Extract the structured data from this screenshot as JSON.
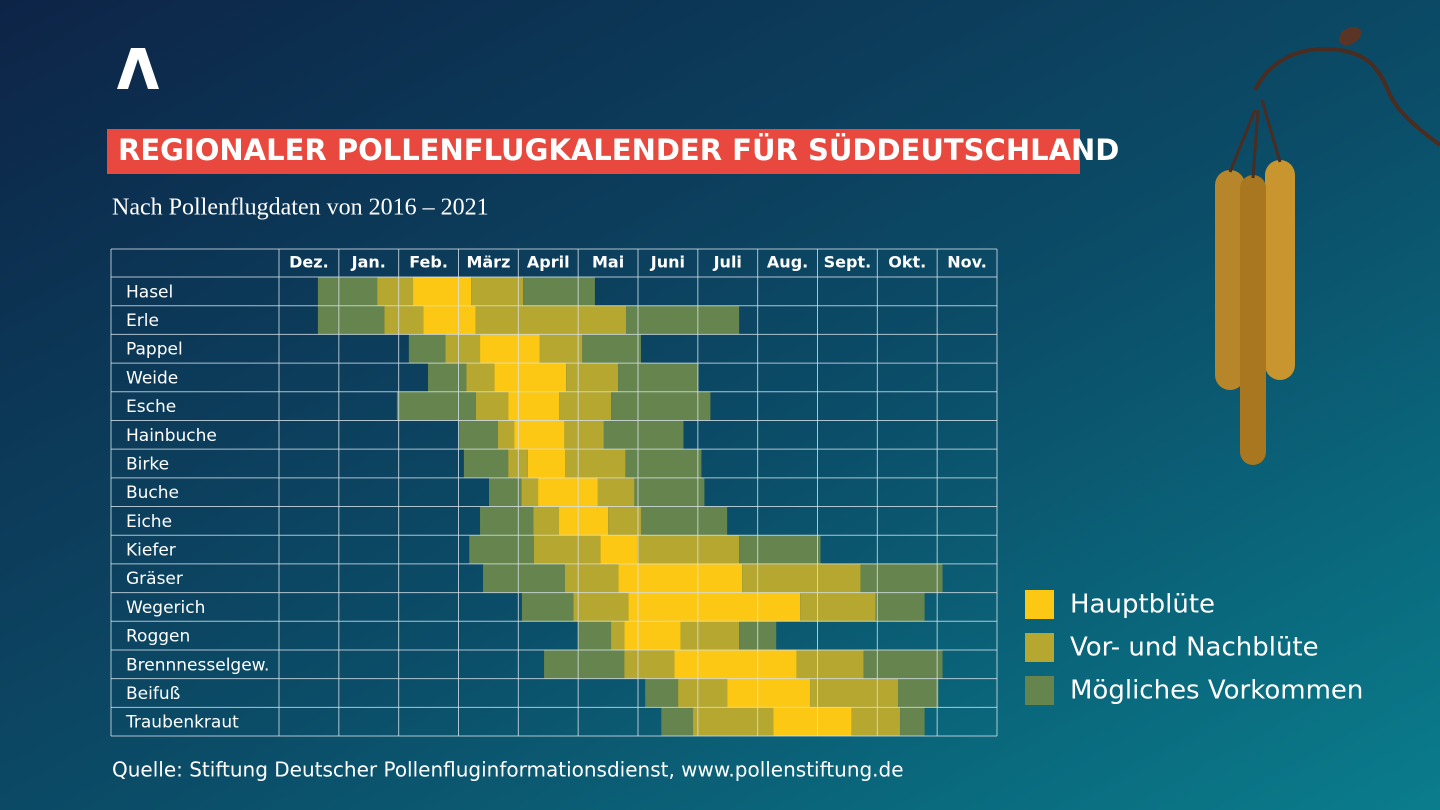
{
  "chart_data": {
    "type": "timeline",
    "title": "REGIONALER POLLENFLUGKALENDER FÜR SÜDDEUTSCHLAND",
    "subtitle": "Nach Pollenflugdaten von 2016 – 2021",
    "source": "Quelle: Stiftung Deutscher Pollenfluginformationsdienst, www.pollenstiftung.de",
    "categories": [
      "Dez.",
      "Jan.",
      "Feb.",
      "März",
      "April",
      "Mai",
      "Juni",
      "Juli",
      "Aug.",
      "Sept.",
      "Okt.",
      "Nov."
    ],
    "xlim": [
      0,
      12
    ],
    "series": [
      {
        "name": "Hauptblüte",
        "color": "#fcc814"
      },
      {
        "name": "Vor- und Nachblüte",
        "color": "#b5a730"
      },
      {
        "name": "Mögliches Vorkommen",
        "color": "#66844e"
      }
    ],
    "rows": [
      {
        "name": "Hasel",
        "spans": [
          [
            0.65,
            1.64,
            2
          ],
          [
            1.64,
            2.24,
            1
          ],
          [
            2.24,
            3.21,
            0
          ],
          [
            3.21,
            4.08,
            1
          ],
          [
            4.08,
            5.28,
            2
          ]
        ]
      },
      {
        "name": "Erle",
        "spans": [
          [
            0.65,
            1.76,
            2
          ],
          [
            1.76,
            2.41,
            1
          ],
          [
            2.41,
            3.29,
            0
          ],
          [
            3.29,
            5.8,
            1
          ],
          [
            5.8,
            7.69,
            2
          ]
        ]
      },
      {
        "name": "Pappel",
        "spans": [
          [
            2.17,
            2.78,
            2
          ],
          [
            2.78,
            3.36,
            1
          ],
          [
            3.36,
            4.36,
            0
          ],
          [
            4.36,
            5.07,
            1
          ],
          [
            5.07,
            6.05,
            2
          ]
        ]
      },
      {
        "name": "Weide",
        "spans": [
          [
            2.49,
            3.13,
            2
          ],
          [
            3.13,
            3.6,
            1
          ],
          [
            3.6,
            4.8,
            0
          ],
          [
            4.8,
            5.67,
            1
          ],
          [
            5.67,
            7.01,
            2
          ]
        ]
      },
      {
        "name": "Esche",
        "spans": [
          [
            1.97,
            3.29,
            2
          ],
          [
            3.29,
            3.83,
            1
          ],
          [
            3.83,
            4.68,
            0
          ],
          [
            4.68,
            5.55,
            1
          ],
          [
            5.55,
            7.21,
            2
          ]
        ]
      },
      {
        "name": "Hainbuche",
        "spans": [
          [
            3.01,
            3.66,
            2
          ],
          [
            3.66,
            3.93,
            1
          ],
          [
            3.93,
            4.77,
            0
          ],
          [
            4.77,
            5.43,
            1
          ],
          [
            5.43,
            6.76,
            2
          ]
        ]
      },
      {
        "name": "Birke",
        "spans": [
          [
            3.09,
            3.83,
            2
          ],
          [
            3.83,
            4.16,
            1
          ],
          [
            4.16,
            4.78,
            0
          ],
          [
            4.78,
            5.79,
            1
          ],
          [
            5.79,
            7.06,
            2
          ]
        ]
      },
      {
        "name": "Buche",
        "spans": [
          [
            3.51,
            4.05,
            2
          ],
          [
            4.05,
            4.33,
            1
          ],
          [
            4.33,
            5.33,
            0
          ],
          [
            5.33,
            5.94,
            1
          ],
          [
            5.94,
            7.11,
            2
          ]
        ]
      },
      {
        "name": "Eiche",
        "spans": [
          [
            3.36,
            4.25,
            2
          ],
          [
            4.25,
            4.68,
            1
          ],
          [
            4.68,
            5.5,
            0
          ],
          [
            5.5,
            6.05,
            1
          ],
          [
            6.05,
            7.49,
            2
          ]
        ]
      },
      {
        "name": "Kiefer",
        "spans": [
          [
            3.18,
            4.26,
            2
          ],
          [
            4.26,
            5.37,
            1
          ],
          [
            5.37,
            5.99,
            0
          ],
          [
            5.99,
            7.69,
            1
          ],
          [
            7.69,
            9.05,
            2
          ]
        ]
      },
      {
        "name": "Gräser",
        "spans": [
          [
            3.41,
            4.78,
            2
          ],
          [
            4.78,
            5.67,
            1
          ],
          [
            5.67,
            7.74,
            0
          ],
          [
            7.74,
            9.72,
            1
          ],
          [
            9.72,
            11.09,
            2
          ]
        ]
      },
      {
        "name": "Wegerich",
        "spans": [
          [
            4.06,
            4.92,
            2
          ],
          [
            4.92,
            5.84,
            1
          ],
          [
            5.84,
            8.71,
            0
          ],
          [
            8.71,
            9.97,
            1
          ],
          [
            9.97,
            10.79,
            2
          ]
        ]
      },
      {
        "name": "Roggen",
        "spans": [
          [
            5.0,
            5.55,
            2
          ],
          [
            5.55,
            5.77,
            1
          ],
          [
            5.77,
            6.71,
            0
          ],
          [
            6.71,
            7.69,
            1
          ],
          [
            7.69,
            8.31,
            2
          ]
        ]
      },
      {
        "name": "Brennnesselgew.",
        "spans": [
          [
            4.43,
            5.77,
            2
          ],
          [
            5.77,
            6.61,
            1
          ],
          [
            6.61,
            8.65,
            0
          ],
          [
            8.65,
            9.77,
            1
          ],
          [
            9.77,
            11.09,
            2
          ]
        ]
      },
      {
        "name": "Beifuß",
        "spans": [
          [
            6.12,
            6.67,
            2
          ],
          [
            6.67,
            7.49,
            1
          ],
          [
            7.49,
            8.88,
            0
          ],
          [
            8.88,
            10.35,
            1
          ],
          [
            10.35,
            11.02,
            2
          ]
        ]
      },
      {
        "name": "Traubenkraut",
        "spans": [
          [
            6.39,
            6.92,
            2
          ],
          [
            6.92,
            8.26,
            1
          ],
          [
            8.26,
            9.57,
            0
          ],
          [
            9.57,
            10.38,
            1
          ],
          [
            10.38,
            10.79,
            2
          ]
        ]
      }
    ]
  }
}
